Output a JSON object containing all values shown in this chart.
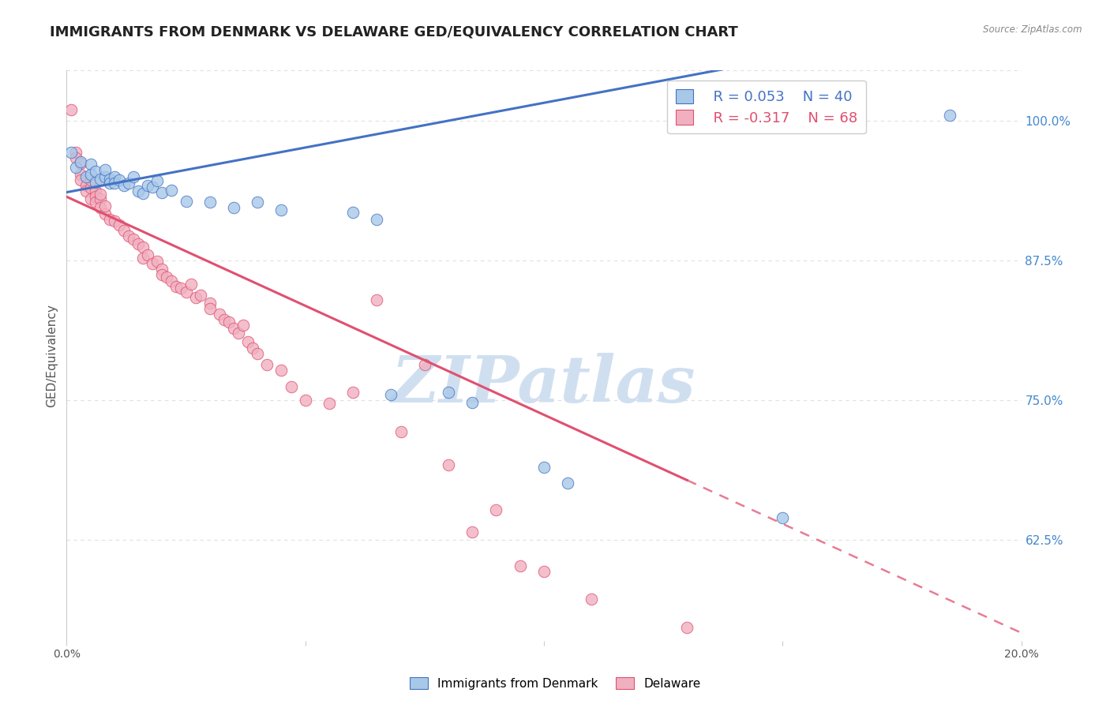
{
  "title": "IMMIGRANTS FROM DENMARK VS DELAWARE GED/EQUIVALENCY CORRELATION CHART",
  "source": "Source: ZipAtlas.com",
  "ylabel": "GED/Equivalency",
  "ytick_labels": [
    "100.0%",
    "87.5%",
    "75.0%",
    "62.5%"
  ],
  "ytick_values": [
    1.0,
    0.875,
    0.75,
    0.625
  ],
  "legend_blue_r": "0.053",
  "legend_blue_n": "40",
  "legend_pink_r": "-0.317",
  "legend_pink_n": "68",
  "legend_label_blue": "Immigrants from Denmark",
  "legend_label_pink": "Delaware",
  "blue_color": "#a8c8e8",
  "pink_color": "#f0b0c0",
  "blue_line_color": "#4472c4",
  "pink_line_color": "#e05070",
  "watermark": "ZIPatlas",
  "watermark_color": "#d0dff0",
  "blue_points": [
    [
      0.001,
      0.972
    ],
    [
      0.002,
      0.958
    ],
    [
      0.003,
      0.963
    ],
    [
      0.004,
      0.95
    ],
    [
      0.005,
      0.961
    ],
    [
      0.005,
      0.952
    ],
    [
      0.006,
      0.955
    ],
    [
      0.006,
      0.945
    ],
    [
      0.007,
      0.948
    ],
    [
      0.008,
      0.95
    ],
    [
      0.008,
      0.956
    ],
    [
      0.009,
      0.948
    ],
    [
      0.009,
      0.944
    ],
    [
      0.01,
      0.95
    ],
    [
      0.01,
      0.944
    ],
    [
      0.011,
      0.947
    ],
    [
      0.012,
      0.942
    ],
    [
      0.013,
      0.944
    ],
    [
      0.014,
      0.95
    ],
    [
      0.015,
      0.937
    ],
    [
      0.016,
      0.935
    ],
    [
      0.017,
      0.942
    ],
    [
      0.018,
      0.941
    ],
    [
      0.019,
      0.946
    ],
    [
      0.02,
      0.936
    ],
    [
      0.022,
      0.938
    ],
    [
      0.025,
      0.928
    ],
    [
      0.03,
      0.927
    ],
    [
      0.035,
      0.922
    ],
    [
      0.04,
      0.927
    ],
    [
      0.045,
      0.92
    ],
    [
      0.06,
      0.918
    ],
    [
      0.065,
      0.912
    ],
    [
      0.068,
      0.755
    ],
    [
      0.08,
      0.757
    ],
    [
      0.085,
      0.748
    ],
    [
      0.1,
      0.69
    ],
    [
      0.105,
      0.676
    ],
    [
      0.15,
      0.645
    ],
    [
      0.185,
      1.005
    ]
  ],
  "pink_points": [
    [
      0.001,
      1.01
    ],
    [
      0.002,
      0.972
    ],
    [
      0.002,
      0.967
    ],
    [
      0.003,
      0.952
    ],
    [
      0.003,
      0.947
    ],
    [
      0.003,
      0.962
    ],
    [
      0.004,
      0.942
    ],
    [
      0.004,
      0.937
    ],
    [
      0.005,
      0.94
    ],
    [
      0.005,
      0.93
    ],
    [
      0.005,
      0.947
    ],
    [
      0.006,
      0.937
    ],
    [
      0.006,
      0.932
    ],
    [
      0.006,
      0.927
    ],
    [
      0.007,
      0.93
    ],
    [
      0.007,
      0.922
    ],
    [
      0.007,
      0.934
    ],
    [
      0.008,
      0.917
    ],
    [
      0.008,
      0.924
    ],
    [
      0.009,
      0.912
    ],
    [
      0.01,
      0.91
    ],
    [
      0.011,
      0.907
    ],
    [
      0.012,
      0.902
    ],
    [
      0.013,
      0.897
    ],
    [
      0.014,
      0.894
    ],
    [
      0.015,
      0.89
    ],
    [
      0.016,
      0.887
    ],
    [
      0.016,
      0.877
    ],
    [
      0.017,
      0.88
    ],
    [
      0.018,
      0.872
    ],
    [
      0.019,
      0.874
    ],
    [
      0.02,
      0.867
    ],
    [
      0.02,
      0.862
    ],
    [
      0.021,
      0.86
    ],
    [
      0.022,
      0.857
    ],
    [
      0.023,
      0.852
    ],
    [
      0.024,
      0.85
    ],
    [
      0.025,
      0.847
    ],
    [
      0.026,
      0.854
    ],
    [
      0.027,
      0.842
    ],
    [
      0.028,
      0.844
    ],
    [
      0.03,
      0.837
    ],
    [
      0.03,
      0.832
    ],
    [
      0.032,
      0.827
    ],
    [
      0.033,
      0.822
    ],
    [
      0.034,
      0.82
    ],
    [
      0.035,
      0.814
    ],
    [
      0.036,
      0.81
    ],
    [
      0.037,
      0.817
    ],
    [
      0.038,
      0.802
    ],
    [
      0.039,
      0.797
    ],
    [
      0.04,
      0.792
    ],
    [
      0.042,
      0.782
    ],
    [
      0.045,
      0.777
    ],
    [
      0.047,
      0.762
    ],
    [
      0.05,
      0.75
    ],
    [
      0.055,
      0.747
    ],
    [
      0.06,
      0.757
    ],
    [
      0.065,
      0.84
    ],
    [
      0.07,
      0.722
    ],
    [
      0.075,
      0.782
    ],
    [
      0.08,
      0.692
    ],
    [
      0.085,
      0.632
    ],
    [
      0.09,
      0.652
    ],
    [
      0.095,
      0.602
    ],
    [
      0.1,
      0.597
    ],
    [
      0.11,
      0.572
    ],
    [
      0.13,
      0.547
    ]
  ],
  "xlim": [
    0.0,
    0.2
  ],
  "ylim": [
    0.535,
    1.045
  ],
  "grid_color": "#e0e0e0",
  "background_color": "#ffffff",
  "title_fontsize": 13,
  "axis_label_fontsize": 10,
  "tick_fontsize": 9,
  "blue_regression": [
    0.9365,
    0.53
  ],
  "pink_regression": [
    0.9318,
    -1.955
  ]
}
